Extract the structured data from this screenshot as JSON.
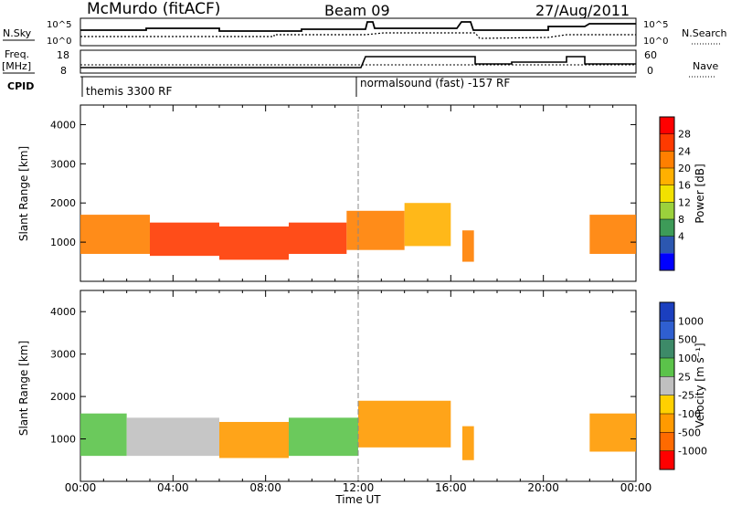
{
  "header": {
    "station": "McMurdo (fitACF)",
    "beam": "Beam 09",
    "date": "27/Aug/2011"
  },
  "panels": {
    "nsky": {
      "left_label": "N.Sky",
      "right_label": "N.Search",
      "left_ticks": [
        "10^5",
        "10^0"
      ],
      "right_ticks": [
        "10^5",
        "10^0"
      ]
    },
    "freq": {
      "left_label_1": "Freq.",
      "left_label_2": "[MHz]",
      "right_label": "Nave",
      "left_ticks": [
        "18",
        "8"
      ],
      "right_ticks": [
        "60",
        "0"
      ]
    },
    "cpid": {
      "label": "CPID",
      "segments": [
        {
          "text": "themis 3300 RF",
          "start_h": 0
        },
        {
          "text": "normalsound (fast) -157 RF",
          "start_h": 12
        }
      ]
    },
    "power": {
      "ylabel": "Slant Range [km]",
      "colorbar_label": "Power [dB]",
      "colorbar_ticks": [
        "28",
        "24",
        "20",
        "16",
        "12",
        "8",
        "4"
      ],
      "colorbar_colors": [
        "#ff0000",
        "#ff3a00",
        "#ff7f00",
        "#ffb000",
        "#f2e100",
        "#9bd13c",
        "#3d9b58",
        "#2c57b0",
        "#0000ff"
      ]
    },
    "velocity": {
      "ylabel": "Slant Range [km]",
      "colorbar_label": "Velocity [m s⁻¹]",
      "colorbar_ticks": [
        "1000",
        "500",
        "100",
        "25",
        "-25",
        "-100",
        "-500",
        "-1000"
      ],
      "colorbar_colors": [
        "#1b3fbf",
        "#2f5fd0",
        "#3d8a68",
        "#5bc34a",
        "#c0c0c0",
        "#ffd000",
        "#ff9a00",
        "#ff6a00",
        "#ff0000"
      ]
    }
  },
  "time_axis": {
    "label": "Time UT",
    "ticks": [
      "00:00",
      "04:00",
      "08:00",
      "12:00",
      "16:00",
      "20:00",
      "00:00"
    ]
  },
  "chart_data": {
    "type": "heatmap",
    "title": "McMurdo (fitACF) Beam 09 27/Aug/2011",
    "xlabel": "Time UT",
    "ylabel": "Slant Range [km]",
    "xlim_hours": [
      0,
      24
    ],
    "ylim_km": [
      0,
      4500
    ],
    "yticks": [
      1000,
      2000,
      3000,
      4000
    ],
    "panels": [
      {
        "name": "Power",
        "unit": "dB",
        "colorbar_range": [
          0,
          30
        ],
        "echo_regions": [
          {
            "t_start": 0.0,
            "t_end": 3.0,
            "range_low": 700,
            "range_high": 1700,
            "value": 24
          },
          {
            "t_start": 3.0,
            "t_end": 6.0,
            "range_low": 650,
            "range_high": 1500,
            "value": 28
          },
          {
            "t_start": 6.0,
            "t_end": 9.0,
            "range_low": 550,
            "range_high": 1400,
            "value": 28
          },
          {
            "t_start": 9.0,
            "t_end": 11.5,
            "range_low": 700,
            "range_high": 1500,
            "value": 26
          },
          {
            "t_start": 11.5,
            "t_end": 14.0,
            "range_low": 800,
            "range_high": 1800,
            "value": 24
          },
          {
            "t_start": 14.0,
            "t_end": 16.0,
            "range_low": 900,
            "range_high": 2000,
            "value": 20
          },
          {
            "t_start": 16.5,
            "t_end": 17.0,
            "range_low": 500,
            "range_high": 1300,
            "value": 22
          },
          {
            "t_start": 22.0,
            "t_end": 24.0,
            "range_low": 700,
            "range_high": 1700,
            "value": 22
          }
        ]
      },
      {
        "name": "Velocity",
        "unit": "m s-1",
        "colorbar_range": [
          -1000,
          1000
        ],
        "echo_regions": [
          {
            "t_start": 0.0,
            "t_end": 2.0,
            "range_low": 600,
            "range_high": 1600,
            "value": 60
          },
          {
            "t_start": 2.0,
            "t_end": 6.0,
            "range_low": 600,
            "range_high": 1500,
            "value": 15
          },
          {
            "t_start": 6.0,
            "t_end": 9.0,
            "range_low": 550,
            "range_high": 1400,
            "value": -150
          },
          {
            "t_start": 9.0,
            "t_end": 12.0,
            "range_low": 600,
            "range_high": 1500,
            "value": 40
          },
          {
            "t_start": 12.0,
            "t_end": 16.0,
            "range_low": 800,
            "range_high": 1900,
            "value": -200
          },
          {
            "t_start": 16.5,
            "t_end": 17.0,
            "range_low": 500,
            "range_high": 1300,
            "value": -200
          },
          {
            "t_start": 22.0,
            "t_end": 24.0,
            "range_low": 700,
            "range_high": 1600,
            "value": -150
          }
        ]
      }
    ]
  }
}
